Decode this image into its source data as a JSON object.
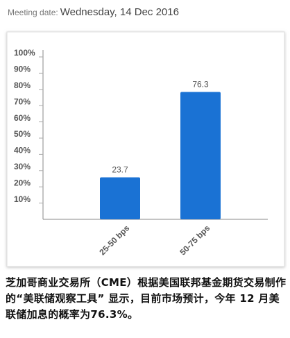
{
  "header": {
    "label": "Meeting date:",
    "date": "Wednesday, 14 Dec 2016"
  },
  "chart_data": {
    "type": "bar",
    "categories": [
      "25-50 bps",
      "50-75 bps"
    ],
    "values": [
      23.7,
      76.3
    ],
    "color": "#1a72d4",
    "ylim": [
      0,
      100
    ],
    "yticks": [
      {
        "value": 10,
        "label": "10%"
      },
      {
        "value": 20,
        "label": "20%"
      },
      {
        "value": 30,
        "label": "30%"
      },
      {
        "value": 40,
        "label": "40%"
      },
      {
        "value": 50,
        "label": "50%"
      },
      {
        "value": 60,
        "label": "60%"
      },
      {
        "value": 70,
        "label": "70%"
      },
      {
        "value": 80,
        "label": "80%"
      },
      {
        "value": 90,
        "label": "90%"
      },
      {
        "value": 100,
        "label": "100%"
      }
    ],
    "grid": false
  },
  "caption": "芝加哥商业交易所（CME）根据美国联邦基金期货交易制作的“美联储观察工具” 显示，目前市场预计，今年 12 月美联储加息的概率为76.3%。"
}
